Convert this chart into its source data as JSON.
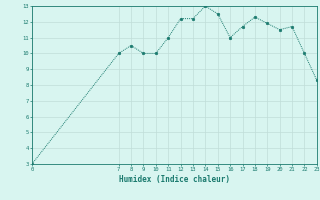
{
  "x_vals": [
    0,
    7,
    8,
    9,
    10,
    11,
    12,
    13,
    14,
    15,
    16,
    17,
    18,
    19,
    20,
    21,
    22,
    23
  ],
  "y_vals": [
    3,
    10,
    10.5,
    10.0,
    10.0,
    11.0,
    12.2,
    12.2,
    13.0,
    12.5,
    11.0,
    11.7,
    12.3,
    11.9,
    11.5,
    11.7,
    10.0,
    8.3
  ],
  "xlabel": "Humidex (Indice chaleur)",
  "ylim": [
    3,
    13
  ],
  "xlim": [
    0,
    23
  ],
  "yticks": [
    3,
    4,
    5,
    6,
    7,
    8,
    9,
    10,
    11,
    12,
    13
  ],
  "xticks": [
    0,
    7,
    8,
    9,
    10,
    11,
    12,
    13,
    14,
    15,
    16,
    17,
    18,
    19,
    20,
    21,
    22,
    23
  ],
  "line_color": "#1a7a6e",
  "marker_color": "#1a7a6e",
  "bg_color": "#d8f5f0",
  "grid_color": "#c0ddd8",
  "axis_color": "#1a7a6e",
  "font_color": "#1a7a6e"
}
